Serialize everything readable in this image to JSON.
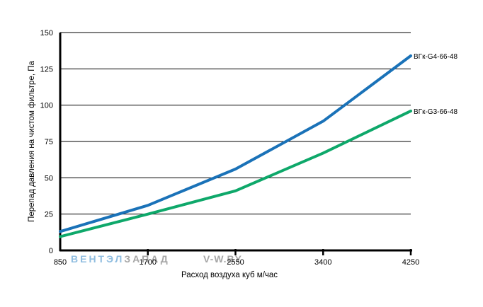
{
  "chart_data": {
    "type": "line",
    "title": "",
    "xlabel": "Расход воздуха  куб м/час",
    "ylabel": "Перепад давления на чистом фильтре, Па",
    "x": [
      850,
      1700,
      2550,
      3400,
      4250
    ],
    "x_tick_labels": [
      "850",
      "1700",
      "2550",
      "3400",
      "4250"
    ],
    "y_ticks": [
      0,
      25,
      50,
      75,
      100,
      125,
      150
    ],
    "y_tick_labels": [
      "0",
      "25",
      "50",
      "75",
      "100",
      "125",
      "150"
    ],
    "xlim": [
      850,
      4250
    ],
    "ylim": [
      0,
      150
    ],
    "grid": "horizontal",
    "legend": "labels at line ends (right)",
    "series": [
      {
        "name": "ВГк-G4-66-48",
        "color": "#1a72b8",
        "values": [
          13,
          31,
          56,
          89,
          134
        ]
      },
      {
        "name": "ВГк-G3-66-48",
        "color": "#0ea86a",
        "values": [
          9.5,
          25,
          41,
          67,
          96
        ]
      }
    ]
  },
  "watermark": {
    "part1": "ВЕНТЭЛ",
    "part2": "ЗАПАД",
    "part3": "V-W.BY",
    "color1": "#8fbde0",
    "color2": "#a6a6a6"
  }
}
